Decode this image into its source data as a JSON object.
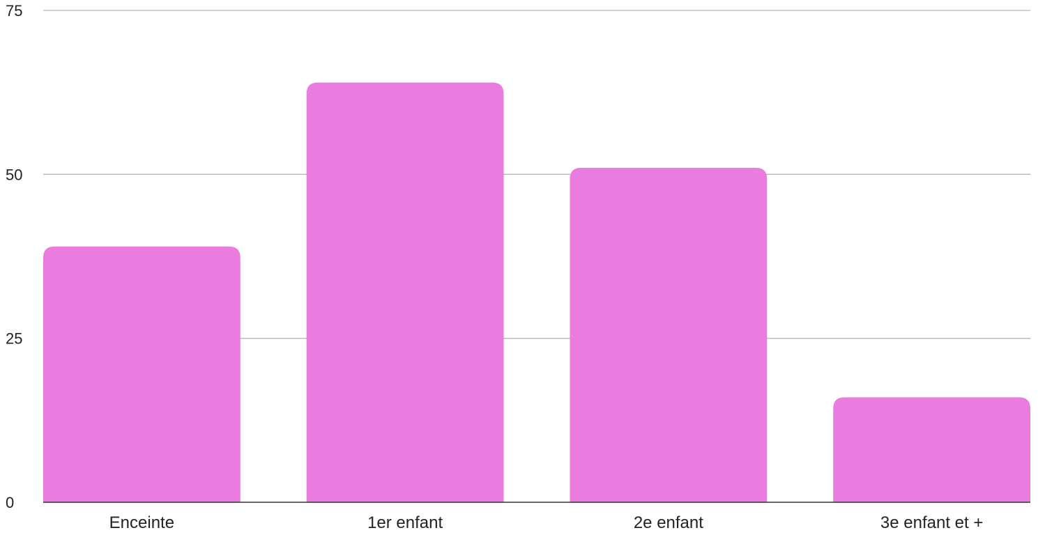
{
  "chart_data": {
    "type": "bar",
    "categories": [
      "Enceinte",
      "1er enfant",
      "2e enfant",
      "3e enfant et +"
    ],
    "values": [
      39,
      64,
      51,
      16
    ],
    "title": "",
    "xlabel": "",
    "ylabel": "",
    "ylim": [
      0,
      75
    ],
    "yticks": [
      "0",
      "25",
      "50",
      "75"
    ],
    "grid": true,
    "legend": "none",
    "colors": {
      "bar": "#ea7ce0",
      "grid": "#b8b8b8",
      "axis": "#333333"
    }
  }
}
